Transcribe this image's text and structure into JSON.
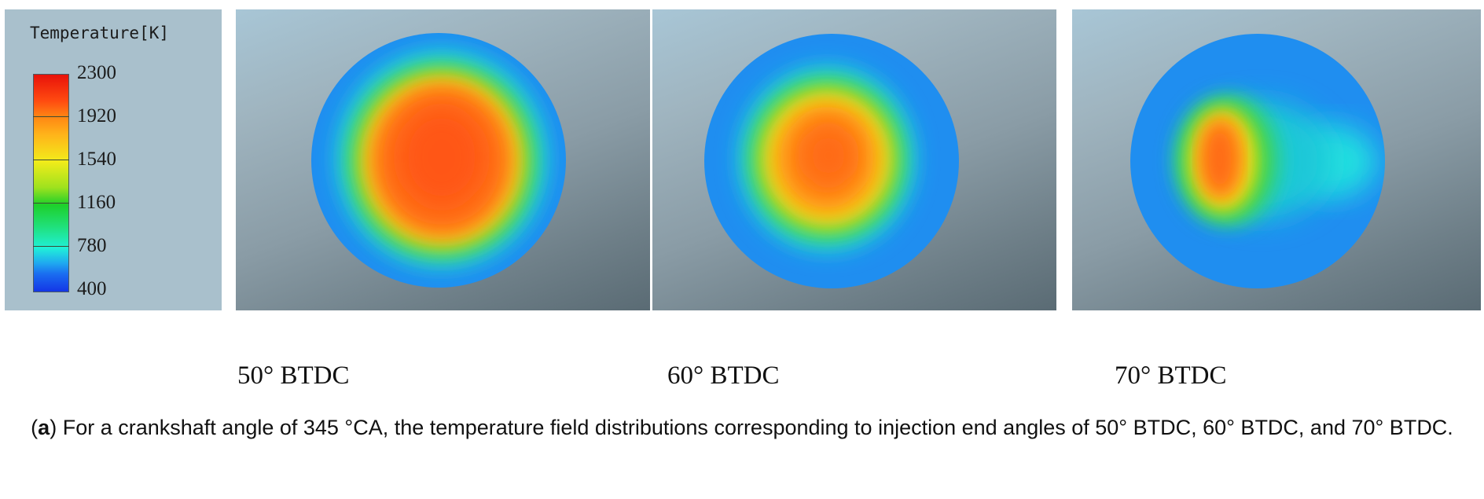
{
  "legend": {
    "title": "Temperature[K]",
    "ticks": [
      "2300",
      "1920",
      "1540",
      "1160",
      "780",
      "400"
    ]
  },
  "panels": [
    {
      "label": "50° BTDC"
    },
    {
      "label": "60° BTDC"
    },
    {
      "label": "70° BTDC"
    }
  ],
  "caption": {
    "tag": "a",
    "text": " For a crankshaft angle of 345 °CA, the temperature field distributions corresponding to injection end angles of 50° BTDC, 60° BTDC, and 70° BTDC."
  },
  "colors": {
    "background_blue": "#1f8ef0",
    "hot_core": "#ff6a10",
    "panel_background": "#8a9ca6"
  }
}
